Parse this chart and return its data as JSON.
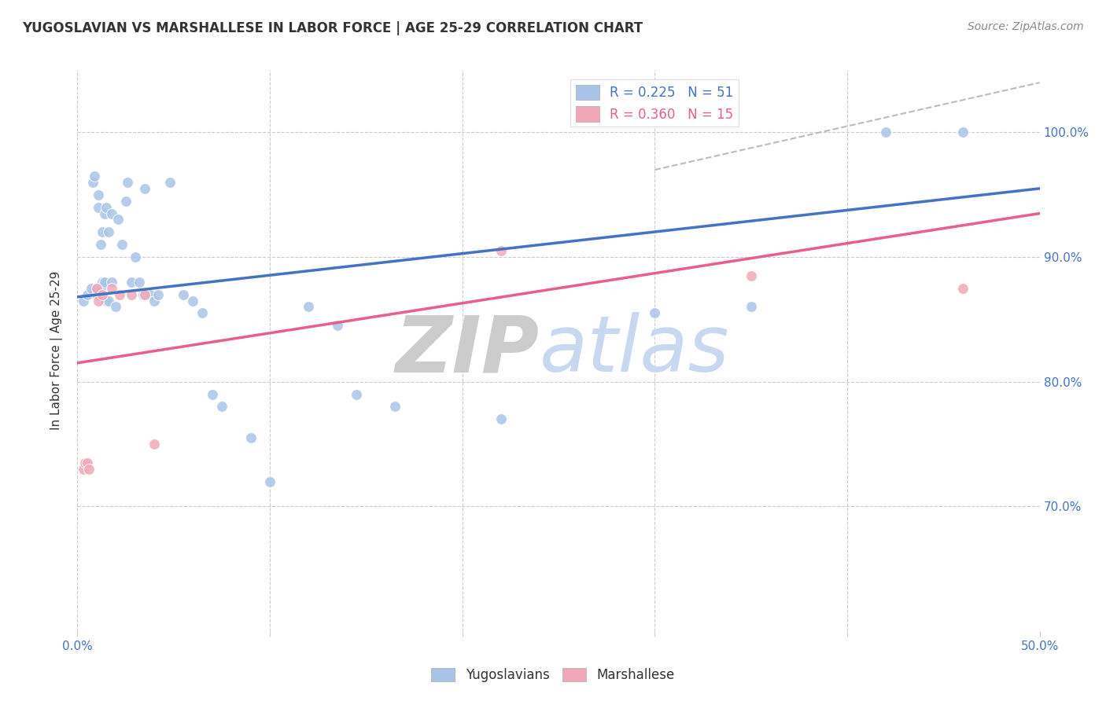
{
  "title": "YUGOSLAVIAN VS MARSHALLESE IN LABOR FORCE | AGE 25-29 CORRELATION CHART",
  "source": "Source: ZipAtlas.com",
  "ylabel": "In Labor Force | Age 25-29",
  "xmin": 0.0,
  "xmax": 0.5,
  "ymin": 0.6,
  "ymax": 1.05,
  "x_ticks": [
    0.0,
    0.1,
    0.2,
    0.3,
    0.4,
    0.5
  ],
  "x_tick_labels": [
    "0.0%",
    "",
    "",
    "",
    "",
    "50.0%"
  ],
  "y_ticks_right": [
    0.7,
    0.8,
    0.9,
    1.0
  ],
  "y_tick_labels_right": [
    "70.0%",
    "80.0%",
    "90.0%",
    "100.0%"
  ],
  "blue_R": 0.225,
  "blue_N": 51,
  "pink_R": 0.36,
  "pink_N": 15,
  "blue_color": "#A8C4E8",
  "pink_color": "#F0A8B8",
  "blue_line_color": "#4472C4",
  "pink_line_color": "#E8608A",
  "dashed_line_color": "#BBBBBB",
  "watermark_zip_color": "#CCCCCC",
  "watermark_atlas_color": "#C8D8F0",
  "blue_scatter_x": [
    0.003,
    0.005,
    0.007,
    0.008,
    0.009,
    0.01,
    0.01,
    0.011,
    0.011,
    0.012,
    0.012,
    0.013,
    0.013,
    0.014,
    0.014,
    0.015,
    0.015,
    0.016,
    0.016,
    0.018,
    0.018,
    0.02,
    0.021,
    0.023,
    0.025,
    0.026,
    0.028,
    0.03,
    0.032,
    0.034,
    0.035,
    0.038,
    0.04,
    0.042,
    0.048,
    0.055,
    0.06,
    0.065,
    0.07,
    0.075,
    0.09,
    0.1,
    0.12,
    0.135,
    0.145,
    0.165,
    0.22,
    0.3,
    0.35,
    0.42,
    0.46
  ],
  "blue_scatter_y": [
    0.865,
    0.87,
    0.875,
    0.96,
    0.965,
    0.87,
    0.875,
    0.94,
    0.95,
    0.875,
    0.91,
    0.88,
    0.92,
    0.88,
    0.935,
    0.865,
    0.94,
    0.865,
    0.92,
    0.88,
    0.935,
    0.86,
    0.93,
    0.91,
    0.945,
    0.96,
    0.88,
    0.9,
    0.88,
    0.87,
    0.955,
    0.87,
    0.865,
    0.87,
    0.96,
    0.87,
    0.865,
    0.855,
    0.79,
    0.78,
    0.755,
    0.72,
    0.86,
    0.845,
    0.79,
    0.78,
    0.77,
    0.855,
    0.86,
    1.0,
    1.0
  ],
  "pink_scatter_x": [
    0.003,
    0.004,
    0.005,
    0.006,
    0.01,
    0.011,
    0.013,
    0.018,
    0.022,
    0.028,
    0.035,
    0.04,
    0.22,
    0.35,
    0.46
  ],
  "pink_scatter_y": [
    0.73,
    0.735,
    0.735,
    0.73,
    0.875,
    0.865,
    0.87,
    0.875,
    0.87,
    0.87,
    0.87,
    0.75,
    0.905,
    0.885,
    0.875
  ],
  "blue_trend_x": [
    0.0,
    0.5
  ],
  "blue_trend_y": [
    0.868,
    0.955
  ],
  "pink_trend_x": [
    0.0,
    0.5
  ],
  "pink_trend_y": [
    0.815,
    0.935
  ],
  "dashed_trend_x": [
    0.3,
    0.5
  ],
  "dashed_trend_y": [
    0.97,
    1.04
  ]
}
